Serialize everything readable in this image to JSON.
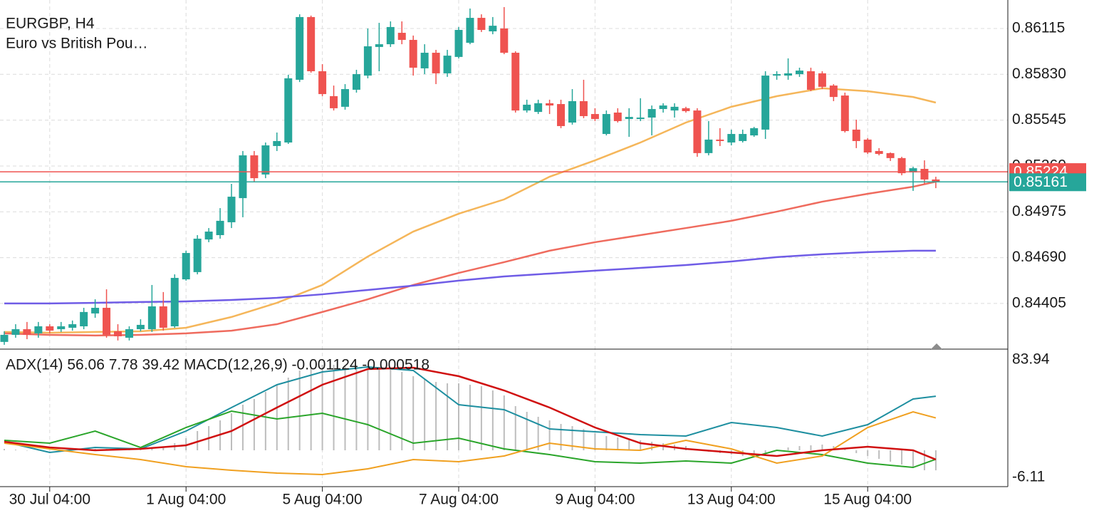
{
  "chart_data": [
    {
      "type": "candlestick",
      "symbol": "EURGBP, H4",
      "description": "Euro vs British Pou…",
      "categories": [
        null,
        null,
        null,
        null,
        "30 Jul 04:00",
        null,
        null,
        null,
        null,
        null,
        null,
        null,
        null,
        null,
        null,
        null,
        "1 Aug 04:00",
        null,
        null,
        null,
        null,
        null,
        null,
        null,
        null,
        null,
        null,
        null,
        "5 Aug 04:00",
        null,
        null,
        null,
        null,
        null,
        null,
        null,
        null,
        null,
        null,
        null,
        "7 Aug 04:00",
        null,
        null,
        null,
        null,
        null,
        null,
        null,
        null,
        null,
        null,
        null,
        "9 Aug 04:00",
        null,
        null,
        null,
        null,
        null,
        null,
        null,
        null,
        null,
        null,
        null,
        "13 Aug 04:00",
        null,
        null,
        null,
        null,
        null,
        null,
        null,
        null,
        null,
        null,
        null,
        "15 Aug 04:00",
        null,
        null,
        null,
        null,
        null,
        null
      ],
      "open": [
        0.84166,
        0.8421,
        0.84245,
        0.84219,
        0.84263,
        0.84245,
        0.84254,
        0.84263,
        0.84343,
        0.84378,
        0.84232,
        0.84192,
        0.84245,
        0.84245,
        0.84387,
        0.84263,
        0.84555,
        0.846,
        0.84803,
        0.8483,
        0.8491,
        0.8506,
        0.85326,
        0.85207,
        0.85384,
        0.85406,
        0.85796,
        0.86186,
        0.85849,
        0.85694,
        0.85628,
        0.85734,
        0.85822,
        0.86,
        0.86017,
        0.86088,
        0.86044,
        0.85867,
        0.85964,
        0.85836,
        0.85938,
        0.86026,
        0.86181,
        0.86097,
        0.86115,
        0.85964,
        0.85605,
        0.85596,
        0.8565,
        0.85645,
        0.8553,
        0.85663,
        0.85583,
        0.85459,
        0.85592,
        0.85552,
        0.85552,
        0.85561,
        0.85614,
        0.85605,
        0.85619,
        0.85605,
        0.8534,
        0.85424,
        0.85406,
        0.85415,
        0.8545,
        0.85486,
        0.85822,
        0.85822,
        0.85831,
        0.85849,
        0.85836,
        0.8576,
        0.85698,
        0.85486,
        0.85424,
        0.85353,
        0.8534,
        0.85309,
        0.8522,
        0.85242,
        0.85176
      ],
      "high": [
        0.84232,
        0.84276,
        0.8429,
        0.8429,
        0.84276,
        0.8429,
        0.84299,
        0.84378,
        0.84431,
        0.84493,
        0.84276,
        0.84263,
        0.84307,
        0.8452,
        0.84476,
        0.84586,
        0.84733,
        0.8483,
        0.84874,
        0.84998,
        0.85149,
        0.85353,
        0.85353,
        0.85406,
        0.85468,
        0.85827,
        0.86203,
        0.86195,
        0.85893,
        0.8576,
        0.85769,
        0.85858,
        0.86115,
        0.8615,
        0.86159,
        0.86159,
        0.86071,
        0.86017,
        0.85982,
        0.85982,
        0.86124,
        0.86239,
        0.86203,
        0.86186,
        0.86248,
        0.85973,
        0.85672,
        0.85672,
        0.85672,
        0.85672,
        0.85738,
        0.85796,
        0.85619,
        0.85605,
        0.85619,
        0.85619,
        0.85681,
        0.85636,
        0.8565,
        0.8565,
        0.85628,
        0.85619,
        0.85539,
        0.85495,
        0.85486,
        0.85486,
        0.85503,
        0.85849,
        0.85849,
        0.85929,
        0.85871,
        0.85871,
        0.85849,
        0.85769,
        0.85716,
        0.85548,
        0.85433,
        0.85371,
        0.85344,
        0.85317,
        0.85255,
        0.85295,
        0.85193
      ],
      "low": [
        0.84148,
        0.84192,
        0.84183,
        0.84192,
        0.84219,
        0.84228,
        0.84236,
        0.84245,
        0.84316,
        0.84192,
        0.84175,
        0.84175,
        0.84232,
        0.84228,
        0.84236,
        0.84254,
        0.84547,
        0.84586,
        0.84786,
        0.84808,
        0.84874,
        0.84941,
        0.85162,
        0.85184,
        0.85353,
        0.85397,
        0.85782,
        0.8584,
        0.85694,
        0.85605,
        0.8561,
        0.85716,
        0.85805,
        0.85849,
        0.86,
        0.86017,
        0.85822,
        0.85831,
        0.85769,
        0.85814,
        0.85929,
        0.86017,
        0.86093,
        0.86079,
        0.85955,
        0.85592,
        0.85592,
        0.85583,
        0.85583,
        0.85495,
        0.85517,
        0.85557,
        0.85539,
        0.8545,
        0.8553,
        0.85441,
        0.85539,
        0.8545,
        0.85592,
        0.85561,
        0.85592,
        0.85317,
        0.85326,
        0.85384,
        0.85388,
        0.85406,
        0.85441,
        0.85428,
        0.85796,
        0.85796,
        0.85814,
        0.85725,
        0.85738,
        0.85663,
        0.85468,
        0.85371,
        0.85335,
        0.85326,
        0.85291,
        0.85202,
        0.85105,
        0.85149,
        0.85122
      ],
      "close": [
        0.8421,
        0.84245,
        0.8421,
        0.84263,
        0.84236,
        0.84263,
        0.84276,
        0.84352,
        0.84378,
        0.8421,
        0.84201,
        0.84245,
        0.84272,
        0.84387,
        0.84254,
        0.84564,
        0.84719,
        0.84808,
        0.84852,
        0.84919,
        0.85069,
        0.85326,
        0.85184,
        0.85388,
        0.85415,
        0.85805,
        0.86186,
        0.85849,
        0.85707,
        0.85619,
        0.85738,
        0.85831,
        0.86004,
        0.86017,
        0.86124,
        0.86044,
        0.85871,
        0.85964,
        0.85836,
        0.85946,
        0.86106,
        0.86181,
        0.86106,
        0.86132,
        0.85964,
        0.85605,
        0.85641,
        0.8565,
        0.85636,
        0.85508,
        0.85663,
        0.8557,
        0.85552,
        0.85583,
        0.85539,
        0.85565,
        0.85561,
        0.85614,
        0.85636,
        0.85628,
        0.85601,
        0.8534,
        0.85424,
        0.85415,
        0.85459,
        0.85459,
        0.85495,
        0.85822,
        0.85831,
        0.85836,
        0.85853,
        0.85734,
        0.85752,
        0.85689,
        0.85477,
        0.85415,
        0.85344,
        0.85335,
        0.85309,
        0.85215,
        0.85246,
        0.85176,
        0.85161
      ],
      "up_color": "#26a69a",
      "down_color": "#ef5350",
      "ylim": [
        0.8413,
        0.86292
      ],
      "yticks": [
        0.86115,
        {
          "value": 0.8583,
          "label": "0.85830"
        },
        0.85545,
        {
          "value": 0.8526,
          "label": "0.85260"
        },
        0.84975,
        {
          "value": 0.8469,
          "label": "0.84690"
        },
        0.84405
      ],
      "grid": true,
      "moving_averages_x": [
        0,
        4,
        8,
        12,
        16,
        20,
        24,
        28,
        32,
        36,
        40,
        44,
        48,
        52,
        56,
        60,
        64,
        68,
        72,
        76,
        80,
        82
      ],
      "moving_averages": [
        {
          "color": "#f5b65a",
          "values": [
            0.84228,
            0.84223,
            0.84228,
            0.84232,
            0.84254,
            0.84321,
            0.84409,
            0.8452,
            0.84697,
            0.84852,
            0.84963,
            0.85052,
            0.85193,
            0.85295,
            0.85406,
            0.8553,
            0.85628,
            0.85694,
            0.85743,
            0.85725,
            0.85689,
            0.85654
          ]
        },
        {
          "color": "#ef6b5e",
          "values": [
            0.84219,
            0.8421,
            0.84206,
            0.8421,
            0.84219,
            0.84236,
            0.84276,
            0.84352,
            0.84431,
            0.8452,
            0.84595,
            0.84662,
            0.84733,
            0.84786,
            0.8483,
            0.84874,
            0.84919,
            0.84976,
            0.85038,
            0.85087,
            0.85131,
            0.85162
          ]
        },
        {
          "color": "#6f5ce6",
          "values": [
            0.84405,
            0.84405,
            0.84409,
            0.84414,
            0.84418,
            0.84427,
            0.8444,
            0.84462,
            0.84489,
            0.84516,
            0.84547,
            0.84573,
            0.84591,
            0.84609,
            0.84626,
            0.84644,
            0.84666,
            0.84693,
            0.84711,
            0.84724,
            0.84733,
            0.84733
          ]
        }
      ],
      "price_lines": [
        {
          "value": 0.85224,
          "color": "#ef5350"
        },
        {
          "value": 0.85161,
          "color": "#26a69a"
        }
      ]
    },
    {
      "type": "line",
      "title": "ADX(14) 56.06 7.78 39.42 MACD(12,26,9) -0.001124 -0.000518",
      "ylim": [
        -6.11,
        83.94
      ],
      "yticks": [
        83.94,
        -6.11
      ],
      "y2lim": [
        -0.00152,
        0.00508
      ],
      "x": [
        0,
        4,
        8,
        12,
        16,
        20,
        24,
        28,
        32,
        36,
        40,
        44,
        48,
        52,
        56,
        60,
        64,
        68,
        72,
        76,
        80,
        82
      ],
      "series": [
        {
          "color": "#1e8fa0",
          "values": [
            21.17,
            12.99,
            16.81,
            15.71,
            29.36,
            47.37,
            64.84,
            74.66,
            78.48,
            75.75,
            49.55,
            45.73,
            31.0,
            28.81,
            26.63,
            25.54,
            35.91,
            32.09,
            25.54,
            34.27,
            53.92,
            56.06
          ]
        },
        {
          "color": "#2aa52a",
          "values": [
            22.26,
            20.08,
            29.36,
            16.81,
            32.09,
            44.64,
            38.64,
            43.0,
            34.27,
            20.08,
            23.9,
            15.71,
            11.35,
            5.89,
            4.8,
            6.44,
            4.8,
            14.62,
            11.35,
            4.8,
            1.52,
            7.78
          ]
        },
        {
          "color": "#f0a020",
          "values": [
            20.08,
            15.71,
            11.35,
            7.53,
            2.07,
            -0.66,
            -2.84,
            -3.93,
            0.43,
            7.53,
            5.89,
            10.26,
            20.08,
            15.71,
            14.62,
            22.26,
            15.71,
            4.8,
            10.26,
            32.09,
            44.1,
            39.42
          ]
        },
        {
          "color": "#d01010",
          "axis": "y2",
          "values": [
            0.00048,
            0.00016,
            0,
            8e-05,
            0.00028,
            0.00108,
            0.0024,
            0.00368,
            0.00456,
            0.00464,
            0.00416,
            0.00336,
            0.0024,
            0.00128,
            0.0004,
            8e-05,
            -0.00012,
            -0.00032,
            0,
            0.0002,
            0,
            -0.000518
          ]
        }
      ],
      "histogram": {
        "color": "#bdbdbd",
        "axis": "y2",
        "values": [
          8e-05,
          4e-05,
          0,
          0,
          0,
          0,
          0,
          4e-05,
          8e-05,
          8e-05,
          8e-05,
          4e-05,
          4e-05,
          8e-05,
          0.00016,
          0.0004,
          0.00068,
          0.00108,
          0.00136,
          0.00168,
          0.00208,
          0.00256,
          0.00288,
          0.00328,
          0.00368,
          0.00408,
          0.00448,
          0.00468,
          0.0048,
          0.0048,
          0.00472,
          0.00472,
          0.00476,
          0.00468,
          0.00456,
          0.0044,
          0.00416,
          0.004,
          0.00384,
          0.00376,
          0.00376,
          0.00368,
          0.0036,
          0.00336,
          0.00308,
          0.00248,
          0.00216,
          0.00188,
          0.00168,
          0.00148,
          0.00136,
          0.0012,
          0.00096,
          0.0008,
          0.00072,
          0.00064,
          0.00056,
          0.00048,
          0.0004,
          0.00032,
          0.00024,
          8e-05,
          -8e-05,
          -0.00016,
          -0.00024,
          -0.00032,
          -0.00032,
          -0.00016,
          0,
          0.00016,
          0.00024,
          0.00028,
          0.00032,
          0.00024,
          8e-05,
          -0.00016,
          -0.00032,
          -0.00048,
          -0.00064,
          -0.0008,
          -0.00096,
          -0.00112,
          -0.001124
        ]
      }
    }
  ]
}
